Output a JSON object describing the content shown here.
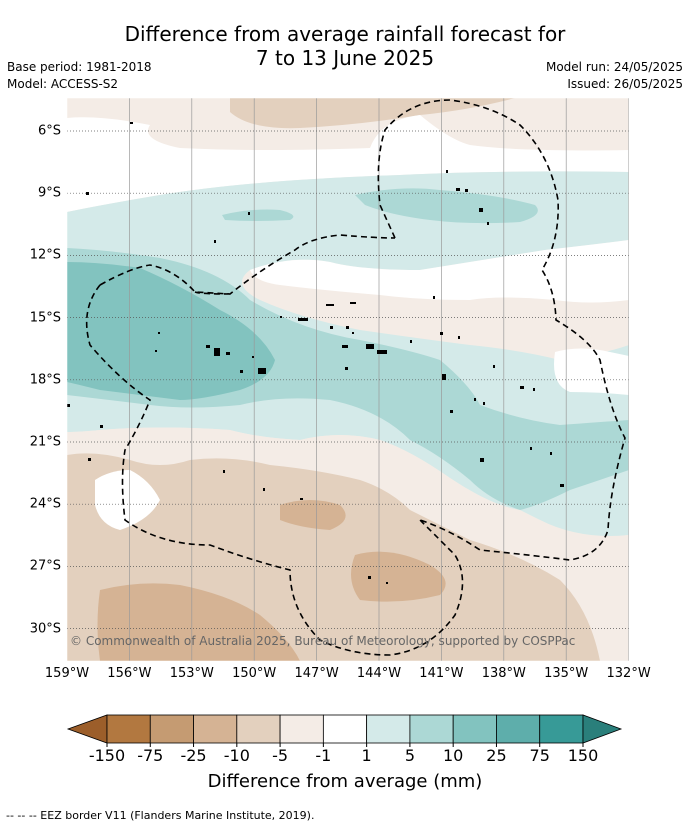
{
  "header": {
    "title_line1": "Difference from average rainfall forecast for",
    "title_line2": "7 to 13 June 2025",
    "base_period": "Base period: 1981-2018",
    "model": "Model: ACCESS-S2",
    "model_run": "Model run: 24/05/2025",
    "issued": "Issued: 26/05/2025"
  },
  "map": {
    "copyright": "© Commonwealth of Australia 2025, Bureau of Meteorology, supported by COSPPac",
    "longitude_labels": [
      "159°W",
      "156°W",
      "153°W",
      "150°W",
      "147°W",
      "144°W",
      "141°W",
      "138°W",
      "135°W",
      "132°W"
    ],
    "latitude_labels": [
      "6°S",
      "9°S",
      "12°S",
      "15°S",
      "18°S",
      "21°S",
      "24°S",
      "27°S",
      "30°S"
    ],
    "boundary_style": "dashed black line",
    "gridlines": true
  },
  "colorbar": {
    "title": "Difference from average (mm)",
    "tick_labels": [
      "-150",
      "-75",
      "-25",
      "-10",
      "-5",
      "-1",
      "1",
      "5",
      "10",
      "25",
      "75",
      "150"
    ],
    "colors": [
      "#9c5e2a",
      "#b27840",
      "#c59b72",
      "#d5b394",
      "#e3d0be",
      "#f4ece6",
      "#ffffff",
      "#d4eae9",
      "#acd8d5",
      "#82c3bf",
      "#5eaeab",
      "#379a97",
      "#2a7f7b"
    ]
  },
  "footer": {
    "legend_note": "--  --  -- EEZ border V11 (Flanders Marine Institute, 2019)."
  }
}
